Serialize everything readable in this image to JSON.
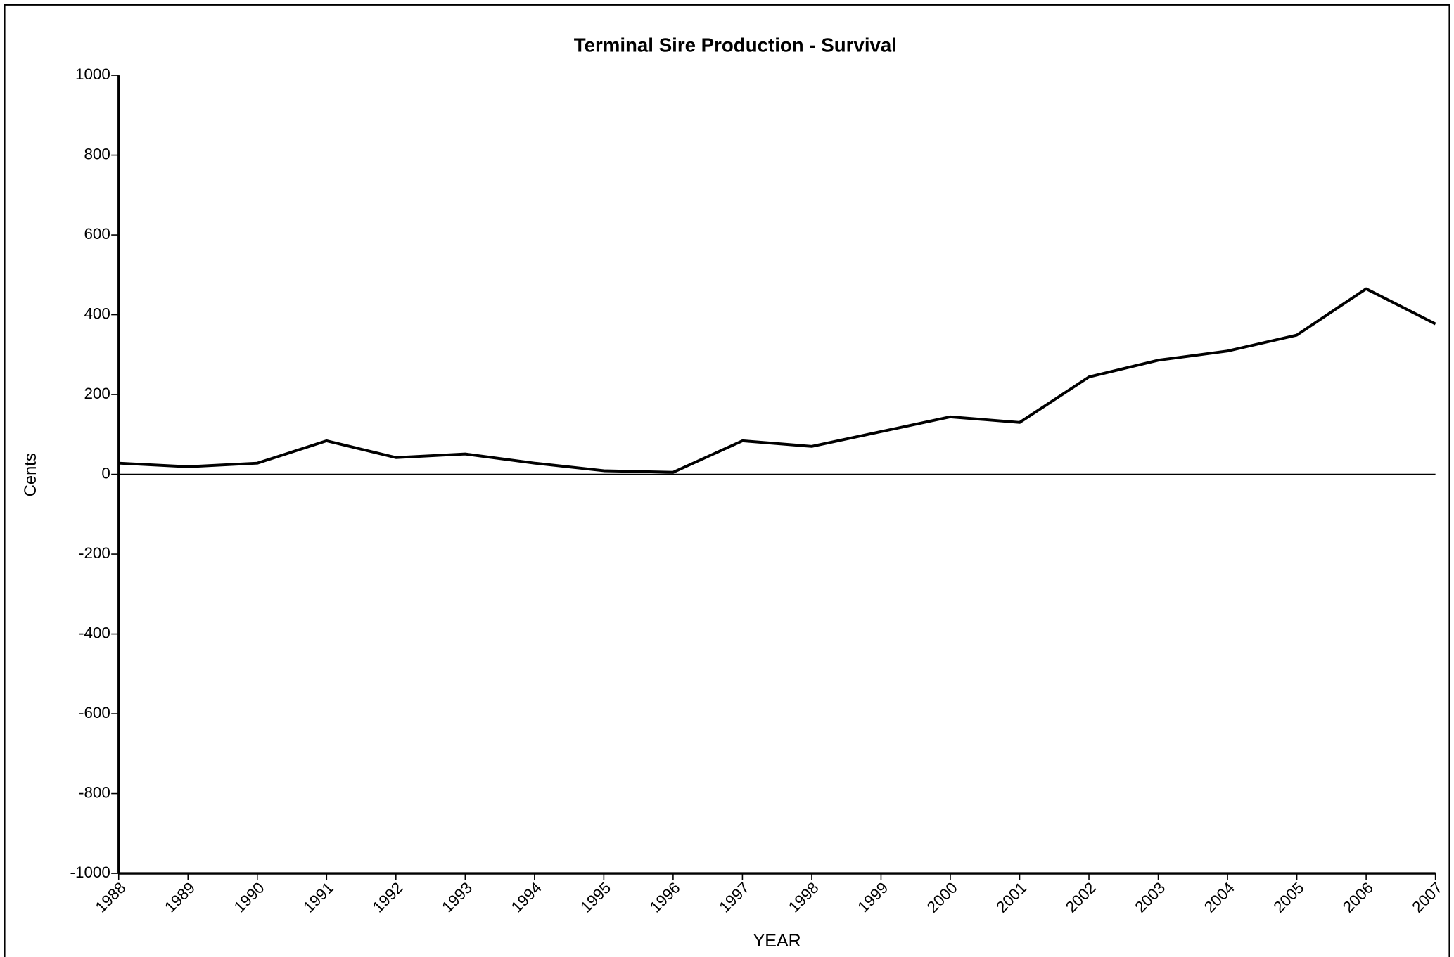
{
  "chart_data": {
    "type": "line",
    "title": "Terminal Sire Production - Survival",
    "x_label": "YEAR",
    "y_label": "Cents",
    "x": [
      1988,
      1989,
      1990,
      1991,
      1992,
      1993,
      1994,
      1995,
      1996,
      1997,
      1998,
      1999,
      2000,
      2001,
      2002,
      2003,
      2004,
      2005,
      2006,
      2007
    ],
    "series": [
      {
        "name": "Survival",
        "color": "#000000",
        "values": [
          28,
          19,
          28,
          84,
          42,
          51,
          28,
          9,
          5,
          84,
          70,
          107,
          144,
          130,
          244,
          286,
          309,
          349,
          465,
          377
        ]
      }
    ],
    "xlim": [
      1988,
      2007
    ],
    "xticks": [
      1988,
      1989,
      1990,
      1991,
      1992,
      1993,
      1994,
      1995,
      1996,
      1997,
      1998,
      1999,
      2000,
      2001,
      2002,
      2003,
      2004,
      2005,
      2006,
      2007
    ],
    "ylim": [
      -1000,
      1000
    ],
    "yticks": [
      -1000,
      -800,
      -600,
      -400,
      -200,
      0,
      200,
      400,
      600,
      800,
      1000
    ],
    "grid": false
  }
}
